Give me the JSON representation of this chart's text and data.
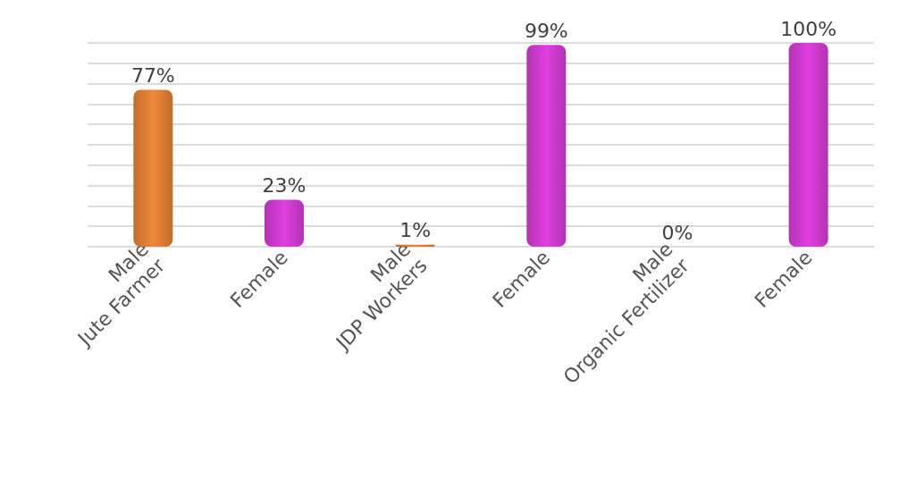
{
  "chart_data": {
    "type": "bar",
    "categories": [
      "Male\nJute Farmer",
      "Female",
      "Male\nJDP Workers",
      "Female",
      "Male\nOrganic Fertilizer",
      "Female"
    ],
    "values": [
      77,
      23,
      1,
      99,
      0,
      100
    ],
    "value_labels": [
      "77%",
      "23%",
      "1%",
      "99%",
      "0%",
      "100%"
    ],
    "colors": [
      "#f0883a",
      "#e040e0",
      "#f0883a",
      "#e040e0",
      "#f0883a",
      "#e040e0"
    ],
    "ylim": [
      0,
      100
    ],
    "yticks": [
      {
        "value": 0,
        "label": null
      },
      {
        "value": 10,
        "label": null
      },
      {
        "value": 20,
        "label": null
      },
      {
        "value": 30,
        "label": null
      },
      {
        "value": 40,
        "label": null
      },
      {
        "value": 50,
        "label": null
      },
      {
        "value": 60,
        "label": null
      },
      {
        "value": 70,
        "label": null
      },
      {
        "value": 80,
        "label": null
      },
      {
        "value": 90,
        "label": null
      },
      {
        "value": 100,
        "label": null
      }
    ],
    "grid": true,
    "tick_labels": "x"
  }
}
